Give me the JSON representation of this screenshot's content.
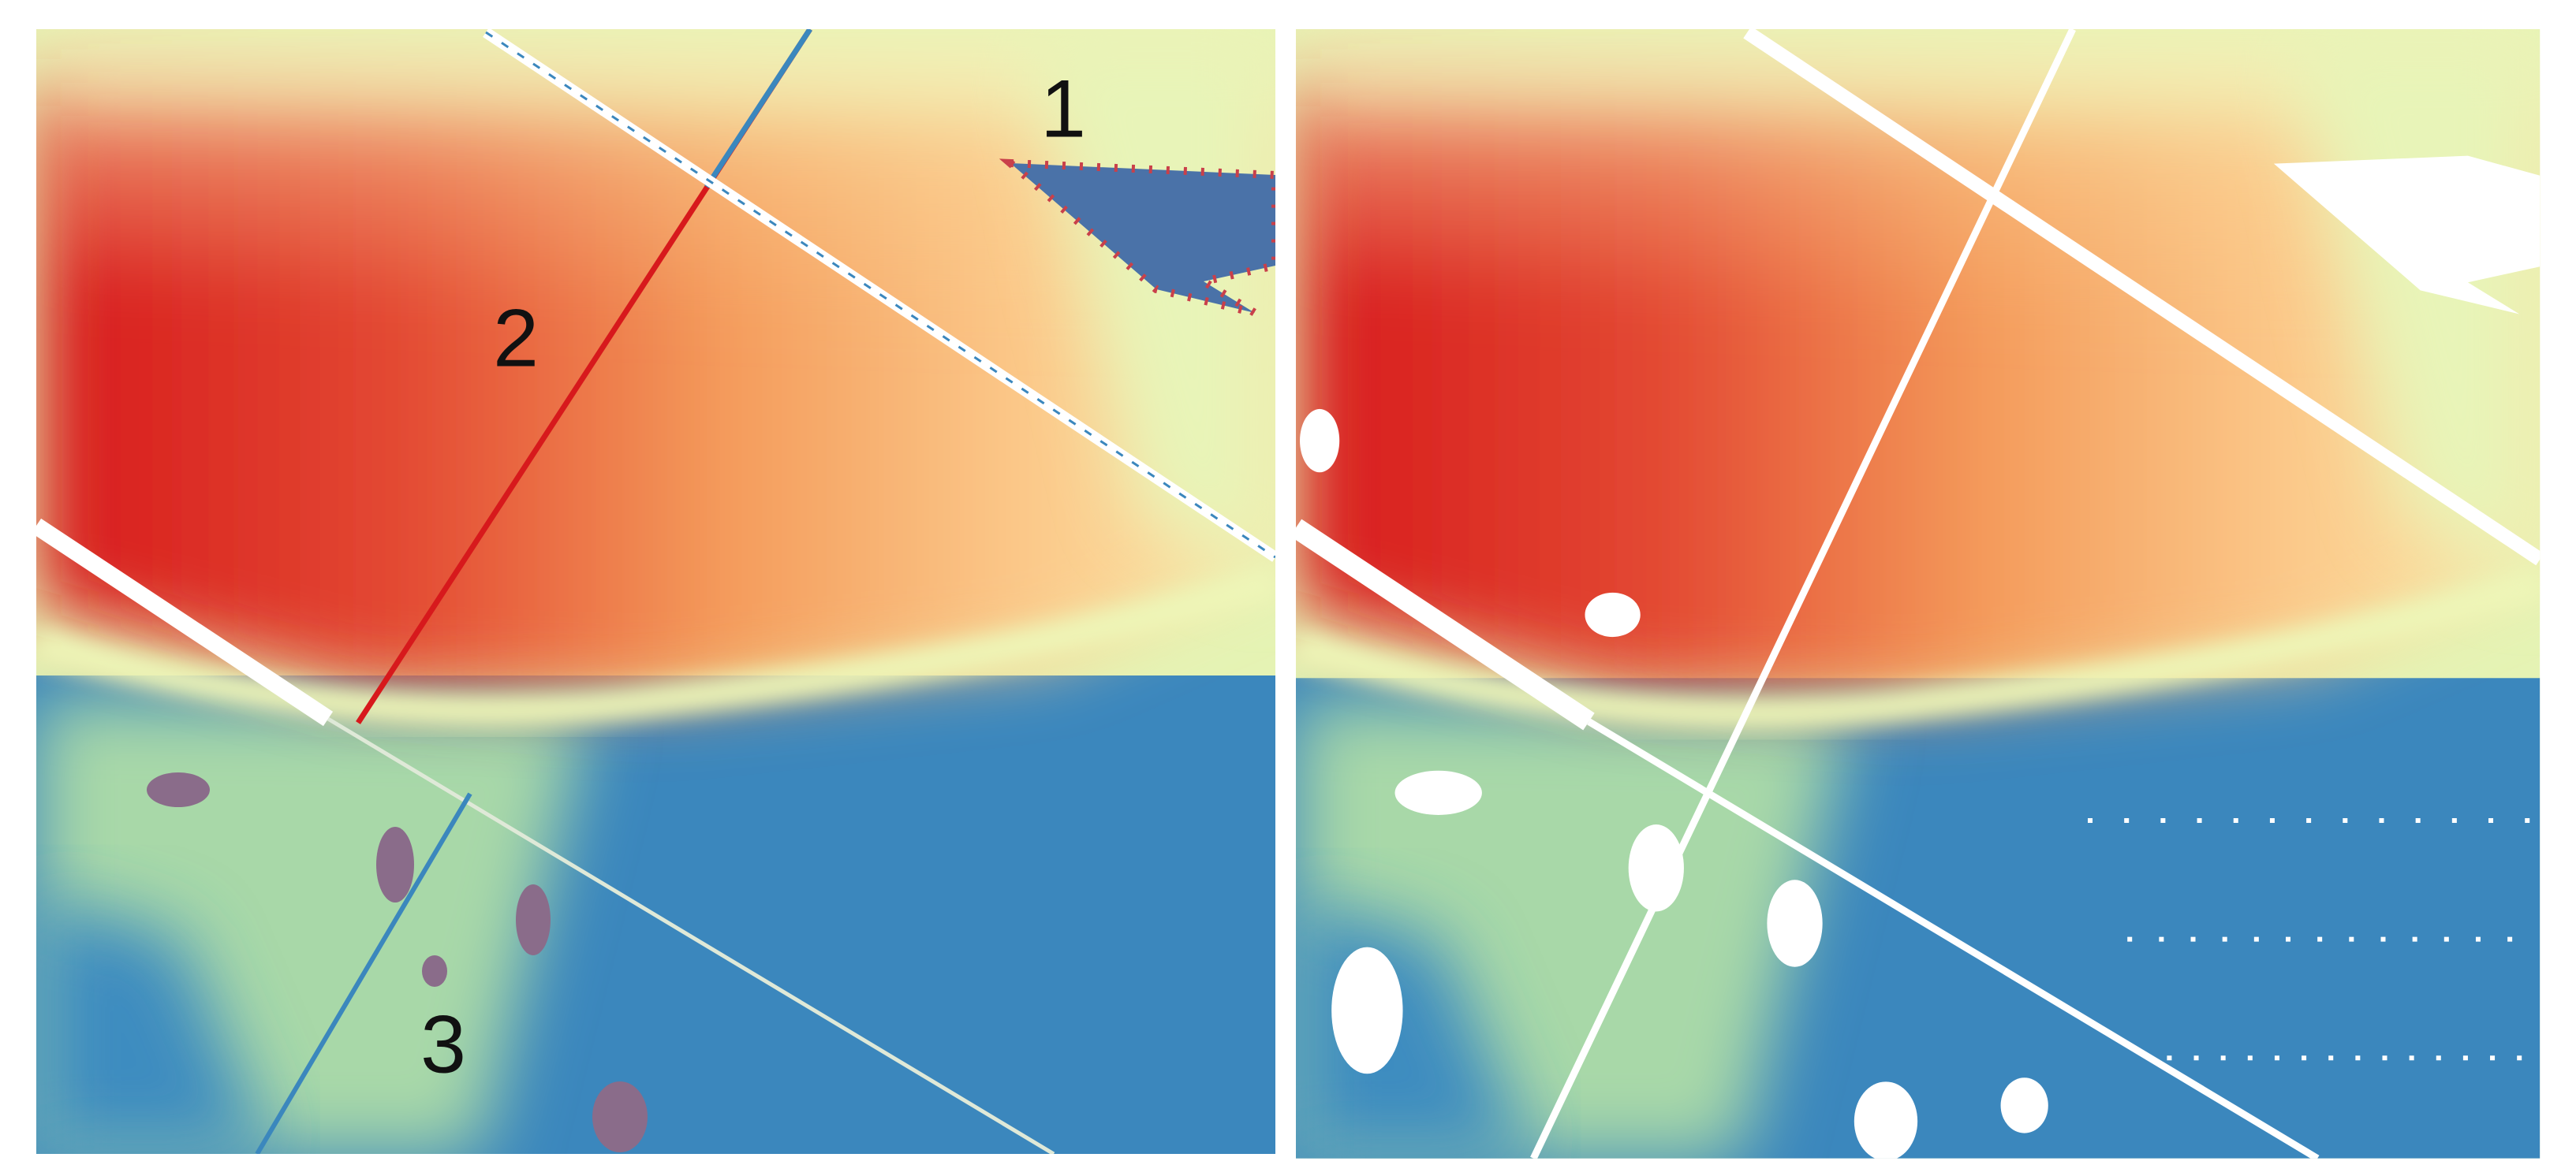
{
  "annotations": [
    "1",
    "2",
    "3"
  ]
}
